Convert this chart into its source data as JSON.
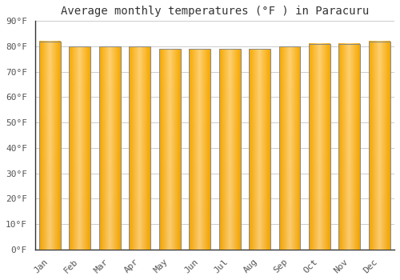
{
  "title": "Average monthly temperatures (°F ) in Paracuru",
  "months": [
    "Jan",
    "Feb",
    "Mar",
    "Apr",
    "May",
    "Jun",
    "Jul",
    "Aug",
    "Sep",
    "Oct",
    "Nov",
    "Dec"
  ],
  "values": [
    82,
    80,
    80,
    80,
    79,
    79,
    79,
    79,
    80,
    81,
    81,
    82
  ],
  "bar_color_center": "#FFD070",
  "bar_color_edge": "#F5A800",
  "bar_edge_color": "#888888",
  "ylim": [
    0,
    90
  ],
  "yticks": [
    0,
    10,
    20,
    30,
    40,
    50,
    60,
    70,
    80,
    90
  ],
  "ytick_labels": [
    "0°F",
    "10°F",
    "20°F",
    "30°F",
    "40°F",
    "50°F",
    "60°F",
    "70°F",
    "80°F",
    "90°F"
  ],
  "background_color": "#ffffff",
  "grid_color": "#cccccc",
  "title_fontsize": 10,
  "tick_fontsize": 8,
  "font_family": "monospace",
  "tick_color": "#555555",
  "title_color": "#333333",
  "spine_color": "#333333"
}
